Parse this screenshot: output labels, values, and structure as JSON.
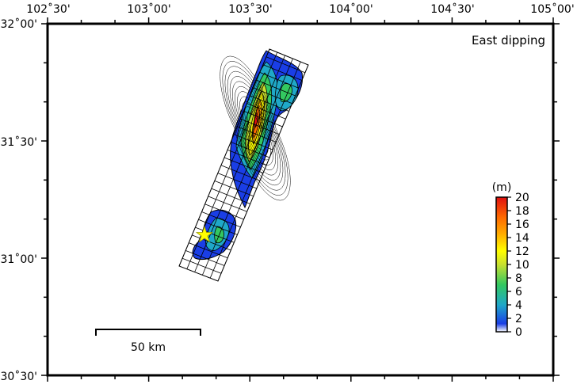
{
  "map": {
    "label": "East dipping",
    "lon_ticks": [
      "102˚30'",
      "103˚00'",
      "103˚30'",
      "104˚00'",
      "104˚30'",
      "105˚00'"
    ],
    "lat_ticks": [
      "32˚00'",
      "31˚30'",
      "31˚00'",
      "30˚30'"
    ],
    "lon_range_deg": [
      102.5,
      105.0
    ],
    "lat_range_deg": [
      30.5,
      32.0
    ],
    "epicenter_marker": "yellow-star",
    "scale_bar": {
      "label": "50 km",
      "length_km": 50
    }
  },
  "colorbar": {
    "unit": "(m)",
    "ticks": [
      "20",
      "18",
      "16",
      "14",
      "12",
      "10",
      "8",
      "6",
      "4",
      "2",
      "0"
    ],
    "range": [
      0,
      20
    ],
    "colors": [
      "#ffffff",
      "#1a3ee6",
      "#1fa8c8",
      "#33c860",
      "#c8e030",
      "#ffff00",
      "#ffb000",
      "#ff6a00",
      "#e01010"
    ]
  },
  "slip_distribution": {
    "max_slip_m": 16,
    "fault": "elongated fault plane striking NE, gridded into patches",
    "patches": [
      {
        "name": "northern-asperity",
        "peak_m": 16
      },
      {
        "name": "northeast-lobe",
        "peak_m": 6
      },
      {
        "name": "southern-asperity",
        "peak_m": 5
      }
    ]
  }
}
